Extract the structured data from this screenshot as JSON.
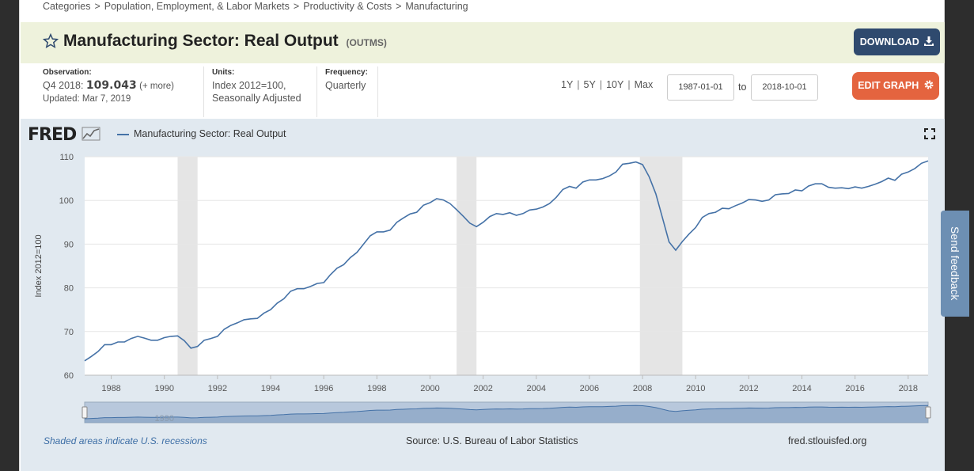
{
  "breadcrumb": [
    "Categories",
    "Population, Employment, & Labor Markets",
    "Productivity & Costs",
    "Manufacturing"
  ],
  "series": {
    "title": "Manufacturing Sector: Real Output",
    "code": "(OUTMS)"
  },
  "buttons": {
    "download": "DOWNLOAD",
    "edit_graph": "EDIT GRAPH"
  },
  "observation": {
    "label": "Observation:",
    "period": "Q4 2018:",
    "value": "109.043",
    "more": "(+ more)",
    "updated": "Updated: Mar 7, 2019"
  },
  "units": {
    "label": "Units:",
    "value": "Index 2012=100, Seasonally Adjusted"
  },
  "frequency": {
    "label": "Frequency:",
    "value": "Quarterly"
  },
  "ranges": [
    "1Y",
    "5Y",
    "10Y",
    "Max"
  ],
  "date_range": {
    "start": "1987-01-01",
    "to": "to",
    "end": "2018-10-01"
  },
  "logo": "FRED",
  "feedback": "Send feedback",
  "footer": {
    "recessions_note": "Shaded areas indicate U.S. recessions",
    "source": "Source: U.S. Bureau of Labor Statistics",
    "site": "fred.stlouisfed.org"
  },
  "colors": {
    "series": "#4572a7",
    "recession": "#e5e5e5",
    "download_bg": "#2f4a6e",
    "edit_bg": "#e4643f"
  },
  "chart_data": {
    "type": "line",
    "title": "Manufacturing Sector: Real Output",
    "ylabel": "Index 2012=100",
    "xlabel": "",
    "xlim": [
      1987.0,
      2018.75
    ],
    "ylim": [
      60,
      110
    ],
    "yticks": [
      60,
      70,
      80,
      90,
      100,
      110
    ],
    "xticks": [
      1988,
      1990,
      1992,
      1994,
      1996,
      1998,
      2000,
      2002,
      2004,
      2006,
      2008,
      2010,
      2012,
      2014,
      2016,
      2018
    ],
    "recessions": [
      [
        1990.5,
        1991.25
      ],
      [
        2001.0,
        2001.75
      ],
      [
        2007.9,
        2009.5
      ]
    ],
    "navigator_label": "1990",
    "series": [
      {
        "name": "Manufacturing Sector: Real Output",
        "x": [
          1987.0,
          1987.25,
          1987.5,
          1987.75,
          1988.0,
          1988.25,
          1988.5,
          1988.75,
          1989.0,
          1989.25,
          1989.5,
          1989.75,
          1990.0,
          1990.25,
          1990.5,
          1990.75,
          1991.0,
          1991.25,
          1991.5,
          1991.75,
          1992.0,
          1992.25,
          1992.5,
          1992.75,
          1993.0,
          1993.25,
          1993.5,
          1993.75,
          1994.0,
          1994.25,
          1994.5,
          1994.75,
          1995.0,
          1995.25,
          1995.5,
          1995.75,
          1996.0,
          1996.25,
          1996.5,
          1996.75,
          1997.0,
          1997.25,
          1997.5,
          1997.75,
          1998.0,
          1998.25,
          1998.5,
          1998.75,
          1999.0,
          1999.25,
          1999.5,
          1999.75,
          2000.0,
          2000.25,
          2000.5,
          2000.75,
          2001.0,
          2001.25,
          2001.5,
          2001.75,
          2002.0,
          2002.25,
          2002.5,
          2002.75,
          2003.0,
          2003.25,
          2003.5,
          2003.75,
          2004.0,
          2004.25,
          2004.5,
          2004.75,
          2005.0,
          2005.25,
          2005.5,
          2005.75,
          2006.0,
          2006.25,
          2006.5,
          2006.75,
          2007.0,
          2007.25,
          2007.5,
          2007.75,
          2008.0,
          2008.25,
          2008.5,
          2008.75,
          2009.0,
          2009.25,
          2009.5,
          2009.75,
          2010.0,
          2010.25,
          2010.5,
          2010.75,
          2011.0,
          2011.25,
          2011.5,
          2011.75,
          2012.0,
          2012.25,
          2012.5,
          2012.75,
          2013.0,
          2013.25,
          2013.5,
          2013.75,
          2014.0,
          2014.25,
          2014.5,
          2014.75,
          2015.0,
          2015.25,
          2015.5,
          2015.75,
          2016.0,
          2016.25,
          2016.5,
          2016.75,
          2017.0,
          2017.25,
          2017.5,
          2017.75,
          2018.0,
          2018.25,
          2018.5,
          2018.75
        ],
        "values": [
          63.3,
          64.3,
          65.4,
          67.0,
          67.0,
          67.6,
          67.6,
          68.4,
          68.9,
          68.5,
          68.0,
          68.0,
          68.6,
          68.9,
          69.0,
          67.9,
          66.2,
          66.6,
          68.0,
          68.4,
          68.9,
          70.5,
          71.4,
          72.0,
          72.7,
          72.9,
          73.0,
          74.2,
          75.0,
          76.5,
          77.5,
          79.2,
          79.8,
          79.8,
          80.3,
          81.0,
          81.2,
          83.0,
          84.5,
          85.3,
          86.9,
          88.1,
          90.0,
          91.9,
          92.8,
          92.8,
          93.2,
          95.0,
          96.0,
          96.9,
          97.3,
          98.9,
          99.5,
          100.4,
          100.1,
          99.3,
          97.9,
          96.4,
          94.8,
          94.0,
          95.0,
          96.3,
          97.0,
          96.8,
          97.2,
          96.6,
          97.0,
          97.8,
          98.0,
          98.5,
          99.3,
          100.7,
          102.5,
          103.2,
          102.8,
          104.2,
          104.7,
          104.7,
          105.0,
          105.6,
          106.5,
          108.3,
          108.5,
          108.8,
          108.2,
          105.4,
          101.5,
          96.0,
          90.5,
          88.6,
          90.6,
          92.3,
          93.8,
          96.1,
          97.0,
          97.3,
          98.2,
          98.1,
          98.8,
          99.4,
          100.2,
          100.1,
          99.8,
          100.1,
          101.3,
          101.5,
          101.6,
          102.4,
          102.2,
          103.3,
          103.8,
          103.8,
          103.0,
          102.8,
          102.9,
          102.7,
          103.1,
          102.8,
          103.2,
          103.7,
          104.3,
          105.1,
          104.6,
          106.0,
          106.5,
          107.3,
          108.5,
          109.043
        ]
      }
    ]
  }
}
